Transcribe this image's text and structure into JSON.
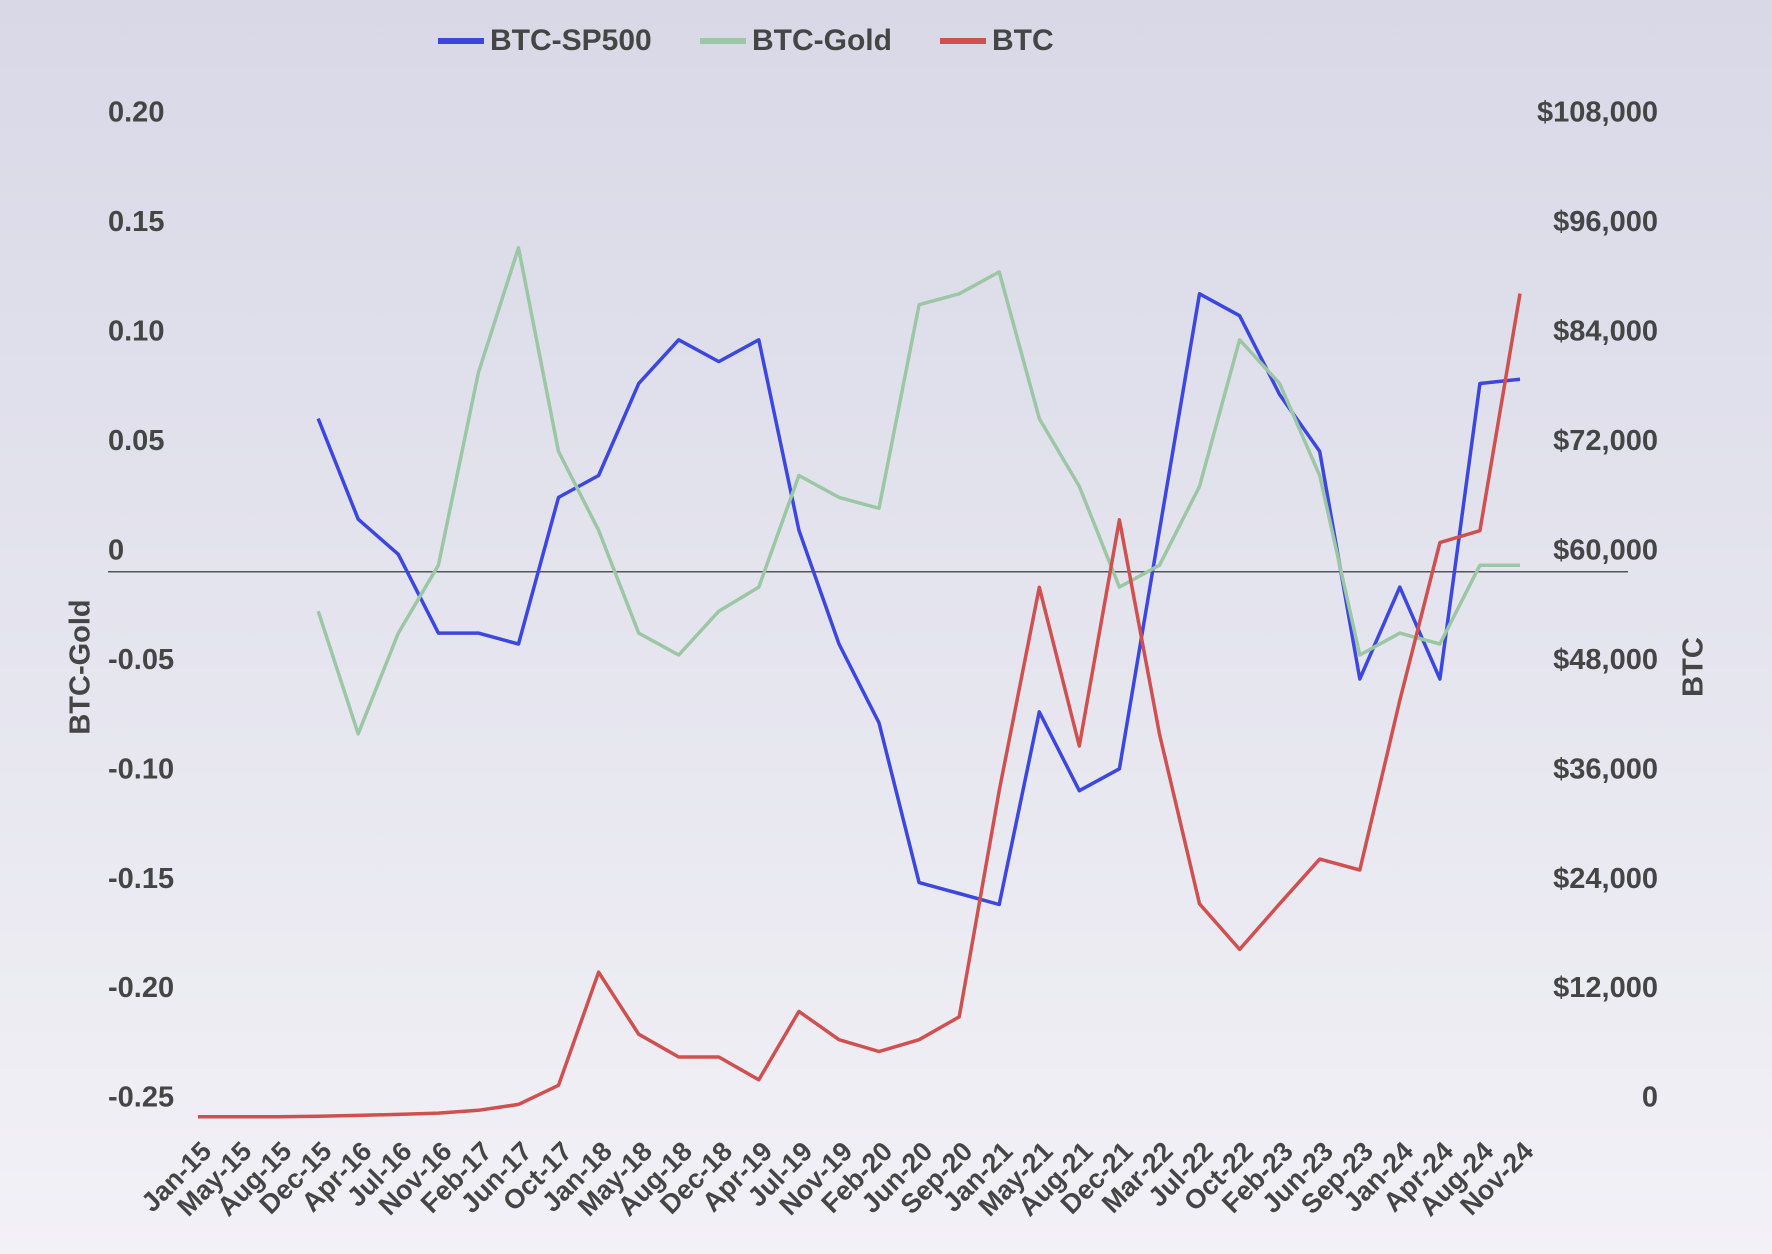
{
  "chart_data": {
    "type": "line",
    "categories": [
      "Jan-15",
      "May-15",
      "Aug-15",
      "Dec-15",
      "Apr-16",
      "Jul-16",
      "Nov-16",
      "Feb-17",
      "Jun-17",
      "Oct-17",
      "Jan-18",
      "May-18",
      "Aug-18",
      "Dec-18",
      "Apr-19",
      "Jul-19",
      "Nov-19",
      "Feb-20",
      "Jun-20",
      "Sep-20",
      "Jan-21",
      "May-21",
      "Aug-21",
      "Dec-21",
      "Mar-22",
      "Jul-22",
      "Oct-22",
      "Feb-23",
      "Jun-23",
      "Sep-23",
      "Jan-24",
      "Apr-24",
      "Aug-24",
      "Nov-24"
    ],
    "series": [
      {
        "name": "BTC-SP500",
        "color": "#3c46e0",
        "values": [
          null,
          null,
          null,
          0.07,
          0.024,
          0.008,
          -0.028,
          -0.028,
          -0.033,
          0.034,
          0.044,
          0.086,
          0.106,
          0.096,
          0.106,
          0.019,
          -0.033,
          -0.069,
          -0.142,
          -0.147,
          -0.152,
          -0.064,
          -0.1,
          -0.09,
          0.019,
          0.127,
          0.117,
          0.081,
          0.055,
          -0.049,
          -0.007,
          -0.049,
          0.086,
          0.088
        ]
      },
      {
        "name": "BTC-Gold",
        "color": "#9cc7a4",
        "values": [
          null,
          null,
          null,
          -0.018,
          -0.074,
          -0.028,
          0.003,
          0.091,
          0.148,
          0.055,
          0.019,
          -0.028,
          -0.038,
          -0.018,
          -0.007,
          0.044,
          0.034,
          0.029,
          0.122,
          0.127,
          0.137,
          0.07,
          0.039,
          -0.007,
          0.003,
          0.039,
          0.106,
          0.086,
          0.044,
          -0.038,
          -0.028,
          -0.033,
          0.003,
          0.003
        ]
      },
      {
        "name": "BTC",
        "color": "#d0504f",
        "axis": "y2",
        "values": [
          250,
          250,
          250,
          300,
          400,
          500,
          650,
          950,
          1600,
          3700,
          16100,
          9300,
          6800,
          6800,
          4300,
          11800,
          8700,
          7400,
          8700,
          11200,
          36000,
          58300,
          40900,
          65700,
          42200,
          23600,
          18600,
          23600,
          28500,
          27300,
          45900,
          63200,
          64500,
          90500
        ]
      }
    ],
    "ylabel": "BTC-Gold",
    "y2label": "BTC",
    "ylim": [
      -0.25,
      0.2
    ],
    "yticks": [
      {
        "value": -0.25,
        "label": "-0.25"
      },
      {
        "value": -0.2,
        "label": "-0.20"
      },
      -0.15,
      {
        "value": -0.1,
        "label": "-0.10"
      },
      -0.05,
      0,
      0.05,
      {
        "value": 0.1,
        "label": "0.10"
      },
      0.15,
      {
        "value": 0.2,
        "label": "0.20"
      }
    ],
    "y2lim": [
      0,
      108000
    ],
    "y2ticks": [
      0,
      {
        "value": 12000,
        "label": "$12,000"
      },
      {
        "value": 24000,
        "label": "$24,000"
      },
      {
        "value": 36000,
        "label": "$36,000"
      },
      {
        "value": 48000,
        "label": "$48,000"
      },
      {
        "value": 60000,
        "label": "$60,000"
      },
      {
        "value": 72000,
        "label": "$72,000"
      },
      {
        "value": 84000,
        "label": "$84,000"
      },
      {
        "value": 96000,
        "label": "$96,000"
      },
      {
        "value": 108000,
        "label": "$108,000"
      }
    ],
    "grid": false,
    "zero_line": true,
    "legend": "top"
  }
}
